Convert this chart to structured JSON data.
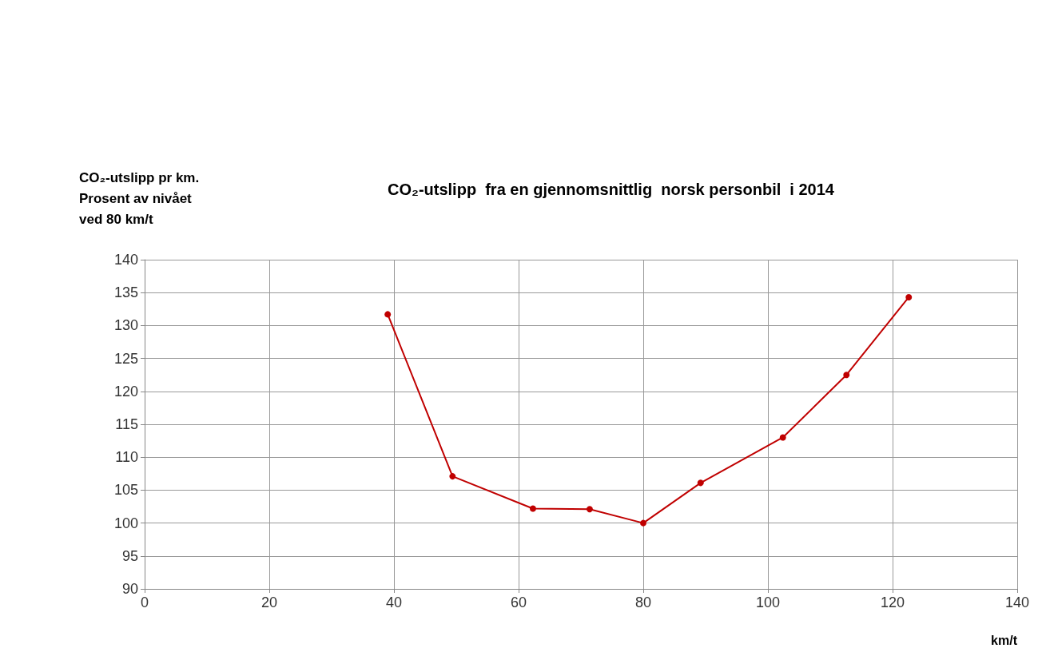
{
  "chart_data": {
    "type": "line",
    "title": "CO₂-utslipp  fra en gjennomsnittlig  norsk personbil  i 2014",
    "xlabel": "km/t",
    "ylabel": "CO₂-utslipp pr km.\nProsent av nivået\nved 80 km/t",
    "series": [
      {
        "color": "#c00000",
        "x": [
          39,
          49.4,
          62.3,
          71.4,
          80,
          89.2,
          102.4,
          112.6,
          122.6
        ],
        "values": [
          131.7,
          107.1,
          102.2,
          102.1,
          100,
          106.1,
          113,
          122.5,
          134.3
        ]
      }
    ],
    "xlim": [
      0,
      140
    ],
    "xticks": [
      0,
      20,
      40,
      60,
      80,
      100,
      120,
      140
    ],
    "ylim": [
      90,
      140
    ],
    "yticks": [
      90,
      95,
      100,
      105,
      110,
      115,
      120,
      125,
      130,
      135,
      140
    ],
    "grid": true,
    "marker": "circle",
    "line_style": "solid"
  }
}
